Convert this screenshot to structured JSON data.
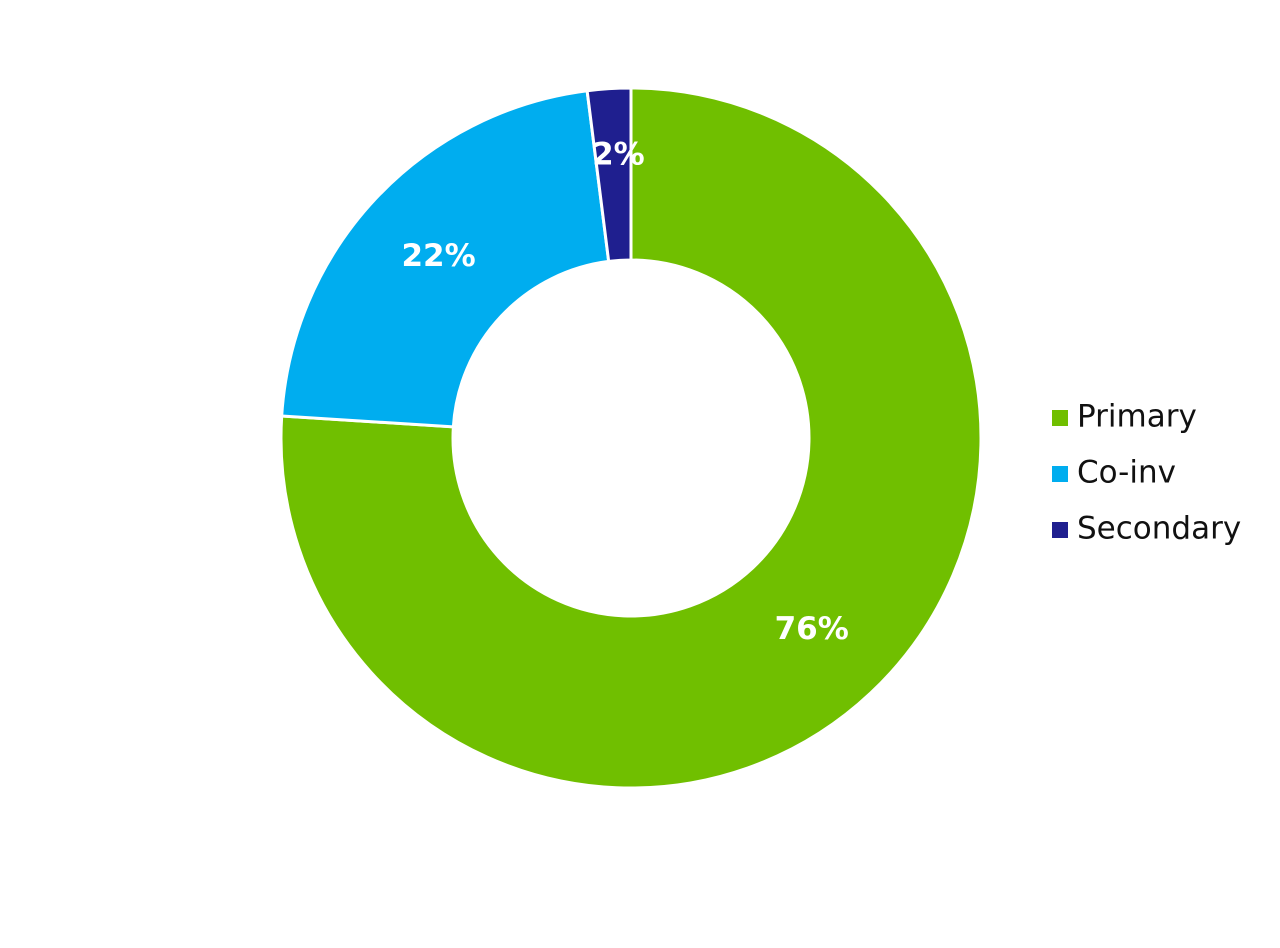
{
  "chart_data": {
    "type": "donut",
    "categories": [
      "Primary",
      "Co-inv",
      "Secondary"
    ],
    "values": [
      76,
      22,
      2
    ],
    "value_labels": [
      "76%",
      "22%",
      "2%"
    ],
    "colors": [
      "#70bf00",
      "#00adef",
      "#1f1f8f"
    ],
    "legend": "right"
  }
}
